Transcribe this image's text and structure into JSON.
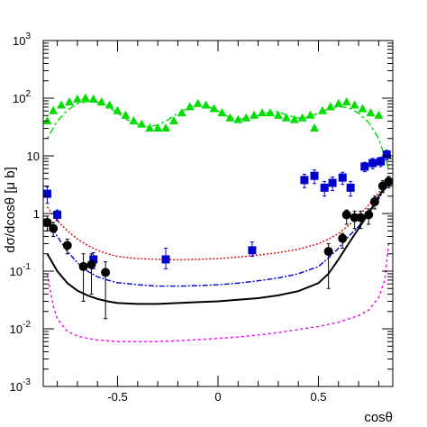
{
  "chart_data": {
    "type": "scatter",
    "title": "",
    "xlabel": "cosθ",
    "ylabel": "dσ/dcosθ [μ b]",
    "xlim": [
      -0.87,
      0.87
    ],
    "ylim": [
      0.001,
      1000
    ],
    "yscale": "log",
    "grid": false,
    "legend": "none",
    "x_ticks": [
      {
        "value": -0.5,
        "label": "-0.5"
      },
      {
        "value": 0,
        "label": "0"
      },
      {
        "value": 0.5,
        "label": "0.5"
      }
    ],
    "y_ticks": [
      {
        "exp": -3,
        "label_base": "10",
        "label_exp": "-3"
      },
      {
        "exp": -2,
        "label_base": "10",
        "label_exp": "-2"
      },
      {
        "exp": -1,
        "label_base": "10",
        "label_exp": "-1"
      },
      {
        "exp": 0,
        "label_base": "1",
        "label_exp": ""
      },
      {
        "exp": 1,
        "label_base": "10",
        "label_exp": ""
      },
      {
        "exp": 2,
        "label_base": "10",
        "label_exp": "2"
      },
      {
        "exp": 3,
        "label_base": "10",
        "label_exp": "3"
      }
    ],
    "curves": [
      {
        "color": "#00dd00",
        "dash": "3,3,8,3",
        "x": [
          -0.85,
          -0.8,
          -0.75,
          -0.7,
          -0.65,
          -0.6,
          -0.55,
          -0.5,
          -0.45,
          -0.4,
          -0.35,
          -0.3,
          -0.25,
          -0.2,
          -0.15,
          -0.1,
          -0.05,
          0,
          0.05,
          0.1,
          0.15,
          0.2,
          0.25,
          0.3,
          0.35,
          0.4,
          0.45,
          0.5,
          0.55,
          0.6,
          0.65,
          0.7,
          0.75,
          0.8,
          0.85
        ],
        "y": [
          20,
          40,
          62,
          80,
          88,
          85,
          72,
          55,
          42,
          35,
          32,
          34,
          42,
          55,
          67,
          75,
          72,
          60,
          48,
          43,
          45,
          50,
          56,
          58,
          50,
          45,
          47,
          55,
          65,
          72,
          68,
          55,
          38,
          20,
          6
        ]
      },
      {
        "color": "#dd0000",
        "dash": "2,2",
        "x": [
          -0.85,
          -0.8,
          -0.75,
          -0.7,
          -0.65,
          -0.6,
          -0.55,
          -0.5,
          -0.4,
          -0.3,
          -0.2,
          -0.1,
          0,
          0.1,
          0.2,
          0.3,
          0.4,
          0.5,
          0.55,
          0.6,
          0.65,
          0.7,
          0.75,
          0.8,
          0.85
        ],
        "y": [
          1.3,
          0.75,
          0.5,
          0.36,
          0.28,
          0.23,
          0.2,
          0.18,
          0.165,
          0.16,
          0.158,
          0.16,
          0.165,
          0.175,
          0.19,
          0.21,
          0.24,
          0.3,
          0.36,
          0.45,
          0.62,
          0.9,
          1.4,
          2.3,
          3.6
        ]
      },
      {
        "color": "#0000cc",
        "dash": "6,2,2,2",
        "x": [
          -0.85,
          -0.8,
          -0.75,
          -0.7,
          -0.65,
          -0.6,
          -0.55,
          -0.5,
          -0.4,
          -0.3,
          -0.2,
          -0.1,
          0,
          0.1,
          0.2,
          0.3,
          0.4,
          0.5,
          0.55,
          0.6,
          0.65,
          0.7,
          0.75,
          0.8,
          0.85
        ],
        "y": [
          0.8,
          0.4,
          0.22,
          0.14,
          0.1,
          0.08,
          0.07,
          0.063,
          0.058,
          0.055,
          0.055,
          0.056,
          0.058,
          0.062,
          0.068,
          0.076,
          0.09,
          0.12,
          0.17,
          0.25,
          0.4,
          0.6,
          1.0,
          1.8,
          3.4
        ]
      },
      {
        "color": "#000000",
        "dash": "",
        "x": [
          -0.85,
          -0.8,
          -0.75,
          -0.7,
          -0.65,
          -0.6,
          -0.55,
          -0.5,
          -0.4,
          -0.3,
          -0.2,
          -0.1,
          0,
          0.1,
          0.2,
          0.3,
          0.4,
          0.5,
          0.55,
          0.6,
          0.65,
          0.7,
          0.75,
          0.8,
          0.85
        ],
        "y": [
          0.2,
          0.1,
          0.062,
          0.046,
          0.038,
          0.033,
          0.03,
          0.028,
          0.027,
          0.027,
          0.028,
          0.029,
          0.03,
          0.032,
          0.034,
          0.038,
          0.045,
          0.062,
          0.09,
          0.16,
          0.3,
          0.55,
          1.0,
          2.0,
          3.5
        ]
      },
      {
        "color": "#ee00ee",
        "dash": "3,3",
        "x": [
          -0.85,
          -0.82,
          -0.8,
          -0.75,
          -0.7,
          -0.65,
          -0.6,
          -0.5,
          -0.4,
          -0.3,
          -0.2,
          -0.1,
          0,
          0.1,
          0.2,
          0.3,
          0.4,
          0.5,
          0.6,
          0.7,
          0.75,
          0.8,
          0.83,
          0.85
        ],
        "y": [
          0.09,
          0.025,
          0.015,
          0.009,
          0.0075,
          0.0068,
          0.0064,
          0.006,
          0.006,
          0.006,
          0.0062,
          0.0065,
          0.0068,
          0.0072,
          0.0078,
          0.0086,
          0.0097,
          0.011,
          0.013,
          0.017,
          0.021,
          0.035,
          0.07,
          0.3
        ]
      }
    ],
    "series": [
      {
        "marker": "triangle",
        "color": "#00dd00",
        "points": [
          {
            "x": -0.85,
            "y": 40
          },
          {
            "x": -0.82,
            "y": 60
          },
          {
            "x": -0.78,
            "y": 75
          },
          {
            "x": -0.74,
            "y": 85
          },
          {
            "x": -0.7,
            "y": 95
          },
          {
            "x": -0.66,
            "y": 100
          },
          {
            "x": -0.62,
            "y": 95
          },
          {
            "x": -0.58,
            "y": 85
          },
          {
            "x": -0.54,
            "y": 75
          },
          {
            "x": -0.5,
            "y": 60
          },
          {
            "x": -0.46,
            "y": 50
          },
          {
            "x": -0.42,
            "y": 40
          },
          {
            "x": -0.38,
            "y": 35
          },
          {
            "x": -0.34,
            "y": 30
          },
          {
            "x": -0.3,
            "y": 30
          },
          {
            "x": -0.26,
            "y": 30
          },
          {
            "x": -0.22,
            "y": 40
          },
          {
            "x": -0.18,
            "y": 55
          },
          {
            "x": -0.14,
            "y": 70
          },
          {
            "x": -0.1,
            "y": 80
          },
          {
            "x": -0.06,
            "y": 75
          },
          {
            "x": -0.02,
            "y": 65
          },
          {
            "x": 0.02,
            "y": 55
          },
          {
            "x": 0.06,
            "y": 45
          },
          {
            "x": 0.1,
            "y": 42
          },
          {
            "x": 0.14,
            "y": 45
          },
          {
            "x": 0.18,
            "y": 50
          },
          {
            "x": 0.22,
            "y": 55
          },
          {
            "x": 0.26,
            "y": 55
          },
          {
            "x": 0.3,
            "y": 50
          },
          {
            "x": 0.34,
            "y": 45
          },
          {
            "x": 0.38,
            "y": 42
          },
          {
            "x": 0.42,
            "y": 45
          },
          {
            "x": 0.46,
            "y": 50
          },
          {
            "x": 0.48,
            "y": 30
          },
          {
            "x": 0.52,
            "y": 60
          },
          {
            "x": 0.56,
            "y": 70
          },
          {
            "x": 0.6,
            "y": 80
          },
          {
            "x": 0.64,
            "y": 85
          },
          {
            "x": 0.68,
            "y": 75
          },
          {
            "x": 0.72,
            "y": 65
          },
          {
            "x": 0.76,
            "y": 55
          },
          {
            "x": 0.8,
            "y": 50
          }
        ]
      },
      {
        "marker": "square",
        "color": "#0000cc",
        "points": [
          {
            "x": -0.85,
            "y": 2.2,
            "err_lo": 0.7,
            "err_hi": 0.7
          },
          {
            "x": -0.8,
            "y": 0.95,
            "err_lo": 0.2,
            "err_hi": 0.2
          },
          {
            "x": -0.62,
            "y": 0.16,
            "err_lo": 0.05,
            "err_hi": 0.05
          },
          {
            "x": -0.26,
            "y": 0.16,
            "err_lo": 0.05,
            "err_hi": 0.09
          },
          {
            "x": 0.17,
            "y": 0.23,
            "err_lo": 0.05,
            "err_hi": 0.09
          },
          {
            "x": 0.43,
            "y": 3.8,
            "err_lo": 1.0,
            "err_hi": 1.0
          },
          {
            "x": 0.48,
            "y": 4.5,
            "err_lo": 1.2,
            "err_hi": 1.2
          },
          {
            "x": 0.53,
            "y": 2.8,
            "err_lo": 0.8,
            "err_hi": 0.8
          },
          {
            "x": 0.57,
            "y": 3.4,
            "err_lo": 0.9,
            "err_hi": 0.9
          },
          {
            "x": 0.62,
            "y": 4.2,
            "err_lo": 1.0,
            "err_hi": 1.0
          },
          {
            "x": 0.66,
            "y": 2.8,
            "err_lo": 0.8,
            "err_hi": 0.8
          },
          {
            "x": 0.73,
            "y": 6.5,
            "err_lo": 1.2,
            "err_hi": 1.2
          },
          {
            "x": 0.77,
            "y": 7.5,
            "err_lo": 1.5,
            "err_hi": 1.5
          },
          {
            "x": 0.81,
            "y": 8.0,
            "err_lo": 1.5,
            "err_hi": 1.5
          },
          {
            "x": 0.84,
            "y": 10.5,
            "err_lo": 2.0,
            "err_hi": 2.0
          }
        ]
      },
      {
        "marker": "circle",
        "color": "#000000",
        "points": [
          {
            "x": -0.85,
            "y": 0.7,
            "err_lo": 0.2,
            "err_hi": 0.2
          },
          {
            "x": -0.82,
            "y": 0.55,
            "err_lo": 0.15,
            "err_hi": 0.15
          },
          {
            "x": -0.75,
            "y": 0.28,
            "err_lo": 0.08,
            "err_hi": 0.08
          },
          {
            "x": -0.67,
            "y": 0.12,
            "err_lo": 0.09,
            "err_hi": 0.08
          },
          {
            "x": -0.63,
            "y": 0.13,
            "err_lo": 0.09,
            "err_hi": 0.07
          },
          {
            "x": -0.56,
            "y": 0.095,
            "err_lo": 0.08,
            "err_hi": 0.05
          },
          {
            "x": 0.55,
            "y": 0.22,
            "err_lo": 0.17,
            "err_hi": 0.08
          },
          {
            "x": 0.62,
            "y": 0.37,
            "err_lo": 0.12,
            "err_hi": 0.08
          },
          {
            "x": 0.64,
            "y": 0.95,
            "err_lo": 0.3,
            "err_hi": 0.2
          },
          {
            "x": 0.68,
            "y": 0.85,
            "err_lo": 0.3,
            "err_hi": 0.25
          },
          {
            "x": 0.71,
            "y": 0.85,
            "err_lo": 0.3,
            "err_hi": 0.25
          },
          {
            "x": 0.75,
            "y": 0.95,
            "err_lo": 0.3,
            "err_hi": 0.25
          },
          {
            "x": 0.78,
            "y": 1.6,
            "err_lo": 0.4,
            "err_hi": 0.4
          },
          {
            "x": 0.82,
            "y": 3.0,
            "err_lo": 0.7,
            "err_hi": 0.7
          },
          {
            "x": 0.85,
            "y": 3.6,
            "err_lo": 0.8,
            "err_hi": 0.8
          }
        ]
      }
    ]
  }
}
